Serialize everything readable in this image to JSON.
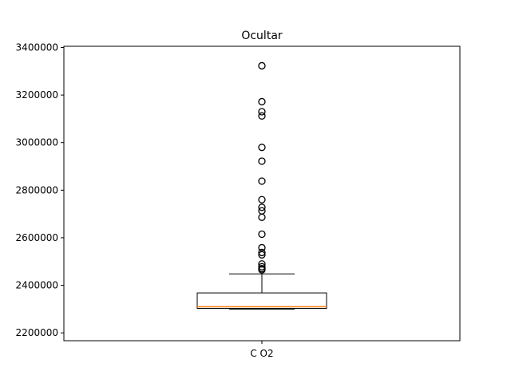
{
  "chart_data": {
    "type": "box",
    "title": "Ocultar",
    "xlabel": "",
    "ylabel": "",
    "categories": [
      "C O2"
    ],
    "ylim": [
      2167000,
      3405000
    ],
    "yticks": [
      2200000,
      2400000,
      2600000,
      2800000,
      3000000,
      3200000,
      3400000
    ],
    "ytick_labels": [
      "2200000",
      "2400000",
      "2600000",
      "2800000",
      "3000000",
      "3200000",
      "3400000"
    ],
    "grid": false,
    "box": {
      "whisker_low": 2300000,
      "q1": 2303000,
      "median": 2310000,
      "q3": 2368000,
      "whisker_high": 2448000,
      "outliers": [
        2465000,
        2470000,
        2478000,
        2490000,
        2528000,
        2538000,
        2558000,
        2615000,
        2686000,
        2713000,
        2728000,
        2760000,
        2838000,
        2922000,
        2980000,
        3112000,
        3130000,
        3172000,
        3323000
      ]
    },
    "colors": {
      "box": "#000000",
      "median": "#ff7f0e",
      "outlier": "#000000"
    }
  }
}
